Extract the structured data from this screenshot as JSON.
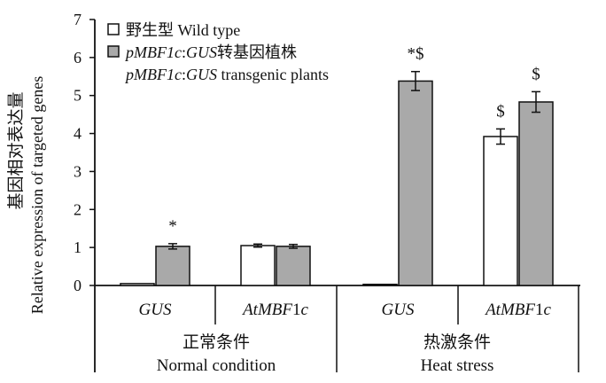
{
  "chart_data": {
    "type": "bar",
    "title": "",
    "ylabel_cn": "基因相对表达量",
    "ylabel_en": "Relative expression of targeted genes",
    "ylim": [
      0,
      7
    ],
    "yticks": [
      "0",
      "1",
      "2",
      "3",
      "4",
      "5",
      "6",
      "7"
    ],
    "legend": {
      "placement": "top-left",
      "items": [
        {
          "label": "野生型 Wild type",
          "fill": "#ffffff"
        },
        {
          "label_italic": "pMBF1c",
          "label_rest": ":",
          "label_italic2": "GUS",
          "label_cn": "转基因植株",
          "fill": "#a9a9a9"
        },
        {
          "label_italic": "pMBF1c",
          "label_rest": ":",
          "label_italic2": "GUS",
          "label_en": " transgenic plants"
        }
      ]
    },
    "groups": [
      {
        "cn": "正常条件",
        "en": "Normal condition"
      },
      {
        "cn": "热激条件",
        "en": "Heat stress"
      }
    ],
    "categories": [
      "GUS",
      "AtMBF1c",
      "GUS",
      "AtMBF1c"
    ],
    "category_labels": [
      {
        "italic": "GUS",
        "upright": ""
      },
      {
        "italic": "AtMBF",
        "upright": "1",
        "italic2": "c"
      },
      {
        "italic": "GUS",
        "upright": ""
      },
      {
        "italic": "AtMBF",
        "upright": "1",
        "italic2": "c"
      }
    ],
    "series": [
      {
        "name": "Wild type",
        "fill": "#ffffff",
        "values": [
          0.05,
          1.05,
          0.03,
          3.92
        ],
        "errors": [
          0.01,
          0.04,
          0.01,
          0.2
        ],
        "annotations": [
          "",
          "",
          "",
          "$"
        ]
      },
      {
        "name": "pMBF1c:GUS transgenic plants",
        "fill": "#a9a9a9",
        "values": [
          1.03,
          1.03,
          5.38,
          4.83
        ],
        "errors": [
          0.07,
          0.05,
          0.25,
          0.27
        ],
        "annotations": [
          "*",
          "",
          "*$",
          "$"
        ]
      }
    ]
  }
}
